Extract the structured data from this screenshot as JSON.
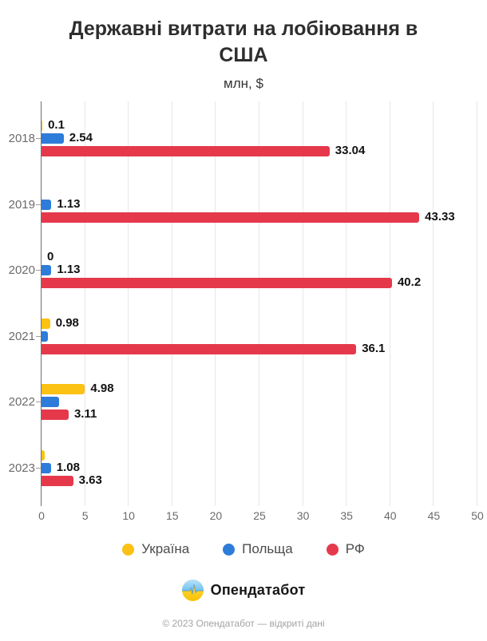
{
  "header": {
    "title": "Державні витрати на лобіювання в США",
    "subtitle": "млн, $"
  },
  "chart_data": {
    "type": "bar",
    "orientation": "horizontal",
    "title": "Державні витрати на лобіювання в США",
    "subtitle": "млн, $",
    "categories": [
      "2018",
      "2019",
      "2020",
      "2021",
      "2022",
      "2023"
    ],
    "series": [
      {
        "name": "Україна",
        "color": "#FBC113",
        "values": [
          0.1,
          null,
          0,
          0.98,
          4.98,
          0.4
        ],
        "labels": [
          "0.1",
          "",
          "0",
          "0.98",
          "4.98",
          ""
        ]
      },
      {
        "name": "Польща",
        "color": "#2E7CD9",
        "values": [
          2.54,
          1.13,
          1.13,
          0.75,
          2.0,
          1.08
        ],
        "labels": [
          "2.54",
          "1.13",
          "1.13",
          "",
          "",
          "1.08"
        ]
      },
      {
        "name": "РФ",
        "color": "#E5394B",
        "values": [
          33.04,
          43.33,
          40.2,
          36.1,
          3.11,
          3.63
        ],
        "labels": [
          "33.04",
          "43.33",
          "40.2",
          "36.1",
          "3.11",
          "3.63"
        ]
      }
    ],
    "xlim": [
      0,
      50
    ],
    "xticks": [
      0,
      5,
      10,
      15,
      20,
      25,
      30,
      35,
      40,
      45,
      50
    ],
    "grid": true,
    "legend_position": "bottom"
  },
  "footer": {
    "brand": "Опендатабот",
    "logo_icon": "opendatabot-pulse-icon",
    "copyright": "© 2023 Опендатабот — відкриті дані"
  }
}
